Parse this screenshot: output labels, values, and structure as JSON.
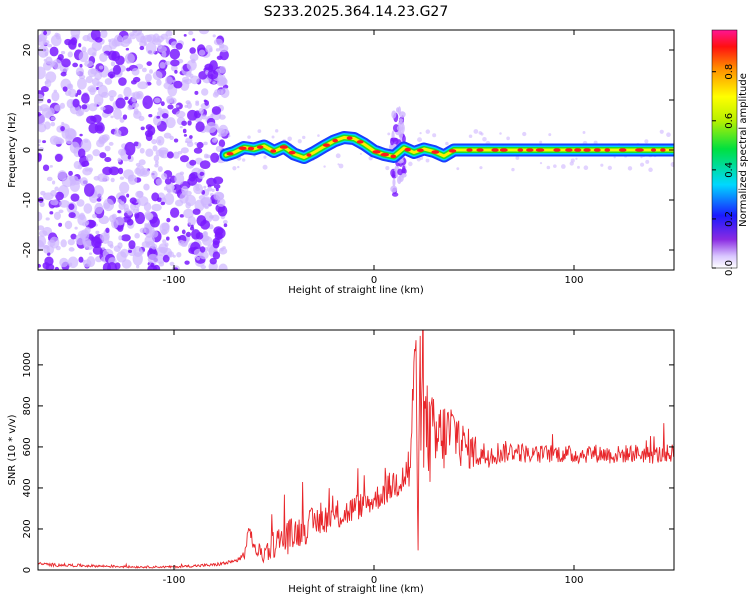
{
  "title": "S233.2025.364.14.23.G27",
  "colors": {
    "snr_line": "#e8262a",
    "ridge_core": "#ff1a1a",
    "ridge_mid": "#20e020",
    "ridge_edge": "#1a3cff",
    "noise": "#7a1aff",
    "noise_light": "#cfb6ff"
  },
  "chart_data": [
    {
      "type": "heatmap",
      "name": "spectrogram",
      "xlabel": "Height of straight line (km)",
      "ylabel": "Frequency (Hz)",
      "xlim": [
        -168,
        150
      ],
      "ylim": [
        -24,
        24
      ],
      "x_ticks": [
        -100,
        0,
        100
      ],
      "y_ticks": [
        -20,
        -10,
        0,
        10,
        20
      ],
      "x_tick_labels": [
        "-100",
        "0",
        "100"
      ],
      "y_tick_labels": [
        "-20",
        "-10",
        "0",
        "10",
        "20"
      ],
      "noise_region_x": [
        -168,
        -74
      ],
      "ridge": {
        "x": [
          -74,
          -70,
          -65,
          -60,
          -55,
          -50,
          -45,
          -40,
          -35,
          -30,
          -25,
          -20,
          -15,
          -10,
          -5,
          0,
          5,
          10,
          15,
          20,
          25,
          30,
          35,
          40,
          150
        ],
        "freq": [
          -1,
          -0.5,
          0.5,
          0.2,
          0.8,
          -0.3,
          0.6,
          -0.8,
          -1.5,
          -0.5,
          0.7,
          1.8,
          2.5,
          2.3,
          1.2,
          -0.2,
          -0.9,
          -1.3,
          0.4,
          -0.5,
          0.2,
          -0.3,
          -1.2,
          0,
          0
        ]
      },
      "colorbar": {
        "label": "Normalized spectral amplitude",
        "ticks": [
          0.0,
          0.2,
          0.4,
          0.6,
          0.8
        ],
        "tick_labels": [
          "0.0",
          "0.2",
          "0.4",
          "0.6",
          "0.8"
        ],
        "range": [
          0,
          0.97
        ]
      }
    },
    {
      "type": "line",
      "name": "snr",
      "xlabel": "Height of straight line (km)",
      "ylabel": "SNR (10 * v/v)",
      "xlim": [
        -168,
        150
      ],
      "ylim": [
        0,
        1170
      ],
      "x_ticks": [
        -100,
        0,
        100
      ],
      "y_ticks": [
        0,
        200,
        400,
        600,
        800,
        1000
      ],
      "x_tick_labels": [
        "-100",
        "0",
        "100"
      ],
      "y_tick_labels": [
        "0",
        "200",
        "400",
        "600",
        "800",
        "1000"
      ],
      "series": [
        {
          "x": [
            -168,
            -160,
            -140,
            -120,
            -100,
            -80,
            -70,
            -65,
            -62,
            -60,
            -55,
            -50,
            -45,
            -40,
            -35,
            -30,
            -25,
            -20,
            -15,
            -10,
            -5,
            0,
            5,
            10,
            15,
            18,
            21,
            22,
            23,
            25,
            28,
            30,
            35,
            40,
            45,
            50,
            55,
            60,
            70,
            80,
            90,
            100,
            110,
            120,
            130,
            140,
            150
          ],
          "y": [
            30,
            25,
            20,
            15,
            15,
            25,
            40,
            70,
            210,
            100,
            80,
            130,
            150,
            180,
            200,
            230,
            250,
            260,
            270,
            300,
            320,
            340,
            380,
            420,
            460,
            500,
            1160,
            60,
            900,
            700,
            650,
            620,
            650,
            680,
            600,
            580,
            560,
            570,
            580,
            560,
            570,
            560,
            570,
            560,
            570,
            560,
            570
          ],
          "amp": [
            8,
            8,
            6,
            5,
            5,
            8,
            10,
            25,
            40,
            30,
            50,
            70,
            90,
            80,
            80,
            80,
            70,
            70,
            70,
            70,
            60,
            60,
            70,
            80,
            100,
            150,
            120,
            60,
            300,
            250,
            250,
            220,
            180,
            160,
            110,
            90,
            70,
            60,
            50,
            45,
            45,
            45,
            45,
            45,
            45,
            45,
            45
          ]
        }
      ]
    }
  ]
}
